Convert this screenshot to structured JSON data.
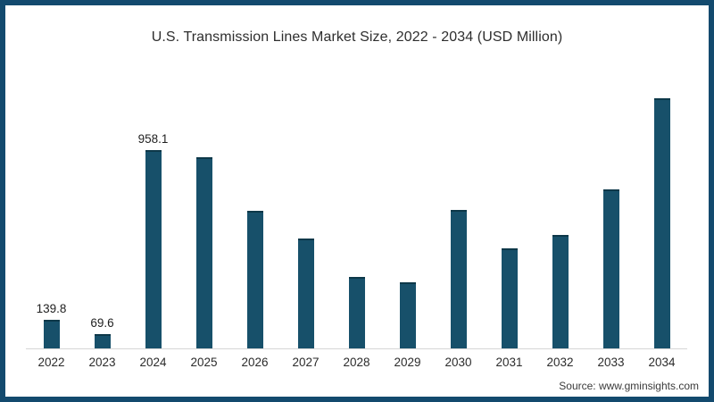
{
  "chart_data": {
    "type": "bar",
    "title": "U.S. Transmission Lines Market Size, 2022 - 2034 (USD Million)",
    "source_note": "Source: www.gminsights.com",
    "categories": [
      "2022",
      "2023",
      "2024",
      "2025",
      "2026",
      "2027",
      "2028",
      "2029",
      "2030",
      "2031",
      "2032",
      "2033",
      "2034"
    ],
    "values": [
      139.8,
      69.6,
      958.1,
      925,
      665,
      530,
      345,
      320,
      670,
      485,
      550,
      770,
      1210
    ],
    "data_labels": [
      "139.8",
      "69.6",
      "958.1",
      "",
      "",
      "",
      "",
      "",
      "",
      "",
      "",
      "",
      ""
    ],
    "xlabel": "",
    "ylabel": "",
    "ylim": [
      0,
      1250
    ],
    "grid": false,
    "legend": false,
    "value_axis_hidden": true,
    "colors": {
      "bar_fill": "#17506a",
      "bar_edge": "#0d3849",
      "frame_border": "#134a6e",
      "axis_line": "#d6d6d6",
      "title_text": "#2e2e2e",
      "label_text": "#1f1f1f"
    }
  }
}
